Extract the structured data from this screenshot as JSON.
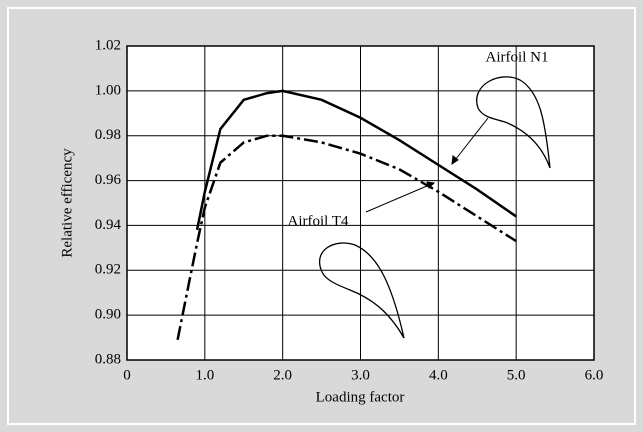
{
  "chart_data": {
    "type": "line",
    "x_label": "Loading factor",
    "y_label": "Relative efficency",
    "x": [
      0.65,
      0.8,
      0.9,
      1.0,
      1.2,
      1.5,
      1.8,
      2.0,
      2.5,
      3.0,
      3.5,
      4.0,
      4.5,
      5.0
    ],
    "series": [
      {
        "name": "Airfoil N1",
        "color": "#000000",
        "style": "solid",
        "values": [
          null,
          null,
          0.938,
          0.955,
          0.983,
          0.996,
          0.999,
          1.0,
          0.996,
          0.988,
          0.978,
          0.967,
          0.956,
          0.944
        ]
      },
      {
        "name": "Airfoil T4",
        "color": "#000000",
        "style": "dashdot",
        "values": [
          0.889,
          0.915,
          0.932,
          0.948,
          0.968,
          0.977,
          0.98,
          0.98,
          0.977,
          0.972,
          0.965,
          0.955,
          0.944,
          0.933
        ]
      }
    ],
    "xlim": [
      0,
      6
    ],
    "xticks": [
      0,
      {
        "value": 1,
        "label": "1.0"
      },
      {
        "value": 2,
        "label": "2.0"
      },
      {
        "value": 3,
        "label": "3.0"
      },
      {
        "value": 4,
        "label": "4.0"
      },
      {
        "value": 5,
        "label": "5.0"
      },
      {
        "value": 6,
        "label": "6.0"
      }
    ],
    "ylim": [
      0.88,
      1.02
    ],
    "yticks": [
      0.88,
      {
        "value": 0.9,
        "label": "0.90"
      },
      0.92,
      0.94,
      0.96,
      0.98,
      {
        "value": 1,
        "label": "1.00"
      },
      1.02
    ],
    "grid": true
  }
}
